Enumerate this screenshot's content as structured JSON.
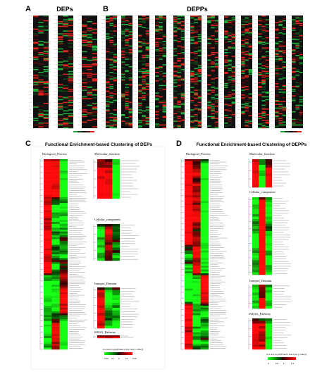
{
  "figure": {
    "panelA": {
      "letter": "A",
      "title": "DEPs"
    },
    "panelB": {
      "letter": "B",
      "title": "DEPPs"
    },
    "panelC": {
      "letter": "C",
      "title": "Functional Enrichment-based Clustering of DEPs",
      "categories": [
        "Biological_Process",
        "Molecular_function",
        "Cellular_component",
        "Interpro_Domain",
        "KEGG_Pathway"
      ],
      "colorbar_label": "Z-score(-log10(Fisher's exact test p value))",
      "colorbar_ticks": [
        "0.25",
        "0.1",
        "0",
        "0.1",
        "0.25"
      ]
    },
    "panelD": {
      "letter": "D",
      "title": "Functional Enrichment-based Clustering of DEPPs",
      "categories": [
        "Biological_Process",
        "Molecular_function",
        "Cellular_component",
        "Interpro_Domain",
        "KEGG_Pathway"
      ],
      "colorbar_label": "Z-score(-log10(Fisher's exact test p value))",
      "colorbar_ticks": [
        "0",
        "0.5",
        "1",
        "1.5"
      ]
    },
    "colors": {
      "red": "#e8241c",
      "green": "#2ecc40",
      "black": "#000000"
    }
  }
}
